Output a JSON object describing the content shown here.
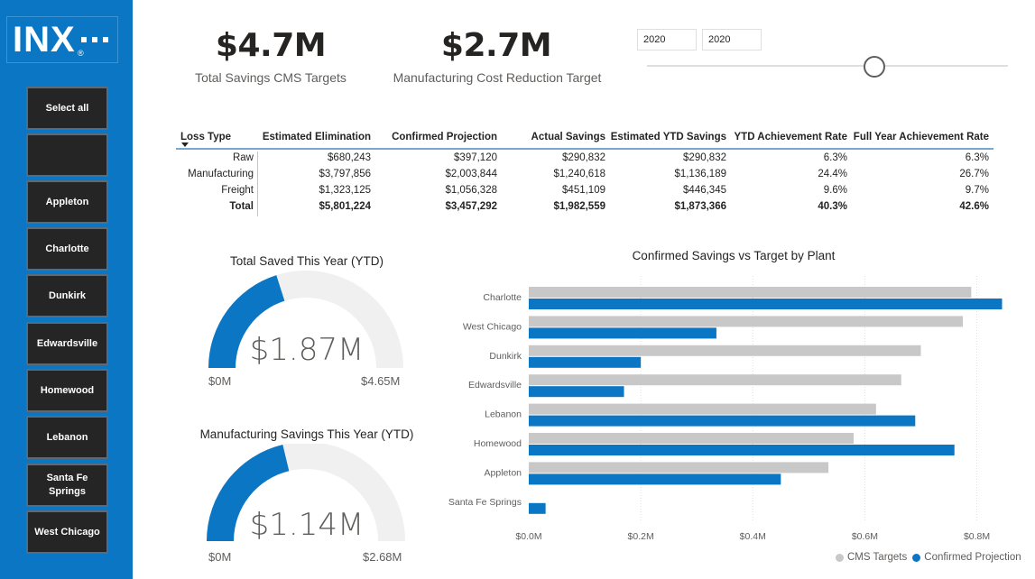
{
  "logo": {
    "text": "INX",
    "mark": "®"
  },
  "sidebar": {
    "items": [
      {
        "label": "Select all"
      },
      {
        "label": ""
      },
      {
        "label": "Appleton"
      },
      {
        "label": "Charlotte"
      },
      {
        "label": "Dunkirk"
      },
      {
        "label": "Edwardsville"
      },
      {
        "label": "Homewood"
      },
      {
        "label": "Lebanon"
      },
      {
        "label": "Santa Fe Springs"
      },
      {
        "label": "West Chicago"
      }
    ]
  },
  "kpis": [
    {
      "value": "$4.7M",
      "label": "Total Savings CMS Targets"
    },
    {
      "value": "$2.7M",
      "label": "Manufacturing Cost Reduction Target"
    }
  ],
  "year_slicer": {
    "from": "2020",
    "to": "2020"
  },
  "table": {
    "headers": [
      "Loss Type",
      "Estimated Elimination",
      "Confirmed Projection",
      "Actual Savings",
      "Estimated YTD Savings",
      "YTD Achievement Rate",
      "Full Year Achievement Rate"
    ],
    "rows": [
      [
        "Raw",
        "$680,243",
        "$397,120",
        "$290,832",
        "$290,832",
        "6.3%",
        "6.3%"
      ],
      [
        "Manufacturing",
        "$3,797,856",
        "$2,003,844",
        "$1,240,618",
        "$1,136,189",
        "24.4%",
        "26.7%"
      ],
      [
        "Freight",
        "$1,323,125",
        "$1,056,328",
        "$451,109",
        "$446,345",
        "9.6%",
        "9.7%"
      ],
      [
        "Total",
        "$5,801,224",
        "$3,457,292",
        "$1,982,559",
        "$1,873,366",
        "40.3%",
        "42.6%"
      ]
    ]
  },
  "gauges": [
    {
      "title": "Total Saved This Year (YTD)",
      "value": "$1.87M",
      "min": "$0M",
      "max": "$4.65M",
      "fraction": 0.402
    },
    {
      "title": "Manufacturing Savings This Year (YTD)",
      "value": "$1.14M",
      "min": "$0M",
      "max": "$2.68M",
      "fraction": 0.425
    }
  ],
  "colors": {
    "sidebar": "#0a76c4",
    "accent": "#0a76c4",
    "gray_series": "#c8c8c8",
    "gauge_track": "#f0f0f0"
  },
  "chart_data": {
    "type": "bar",
    "orientation": "horizontal",
    "title": "Confirmed Savings vs Target by Plant",
    "categories": [
      "Charlotte",
      "West Chicago",
      "Dunkirk",
      "Edwardsville",
      "Lebanon",
      "Homewood",
      "Appleton",
      "Santa Fe Springs"
    ],
    "series": [
      {
        "name": "CMS Targets",
        "color": "#c8c8c8",
        "values": [
          0.79,
          0.775,
          0.7,
          0.665,
          0.62,
          0.58,
          0.535,
          0
        ]
      },
      {
        "name": "Confirmed Projection",
        "color": "#0a76c4",
        "values": [
          0.845,
          0.335,
          0.2,
          0.17,
          0.69,
          0.76,
          0.45,
          0.03
        ]
      }
    ],
    "xticks": [
      "$0.0M",
      "$0.2M",
      "$0.4M",
      "$0.6M",
      "$0.8M"
    ],
    "xlim": [
      0,
      0.87
    ],
    "legend_position": "bottom-right",
    "grid": true
  }
}
